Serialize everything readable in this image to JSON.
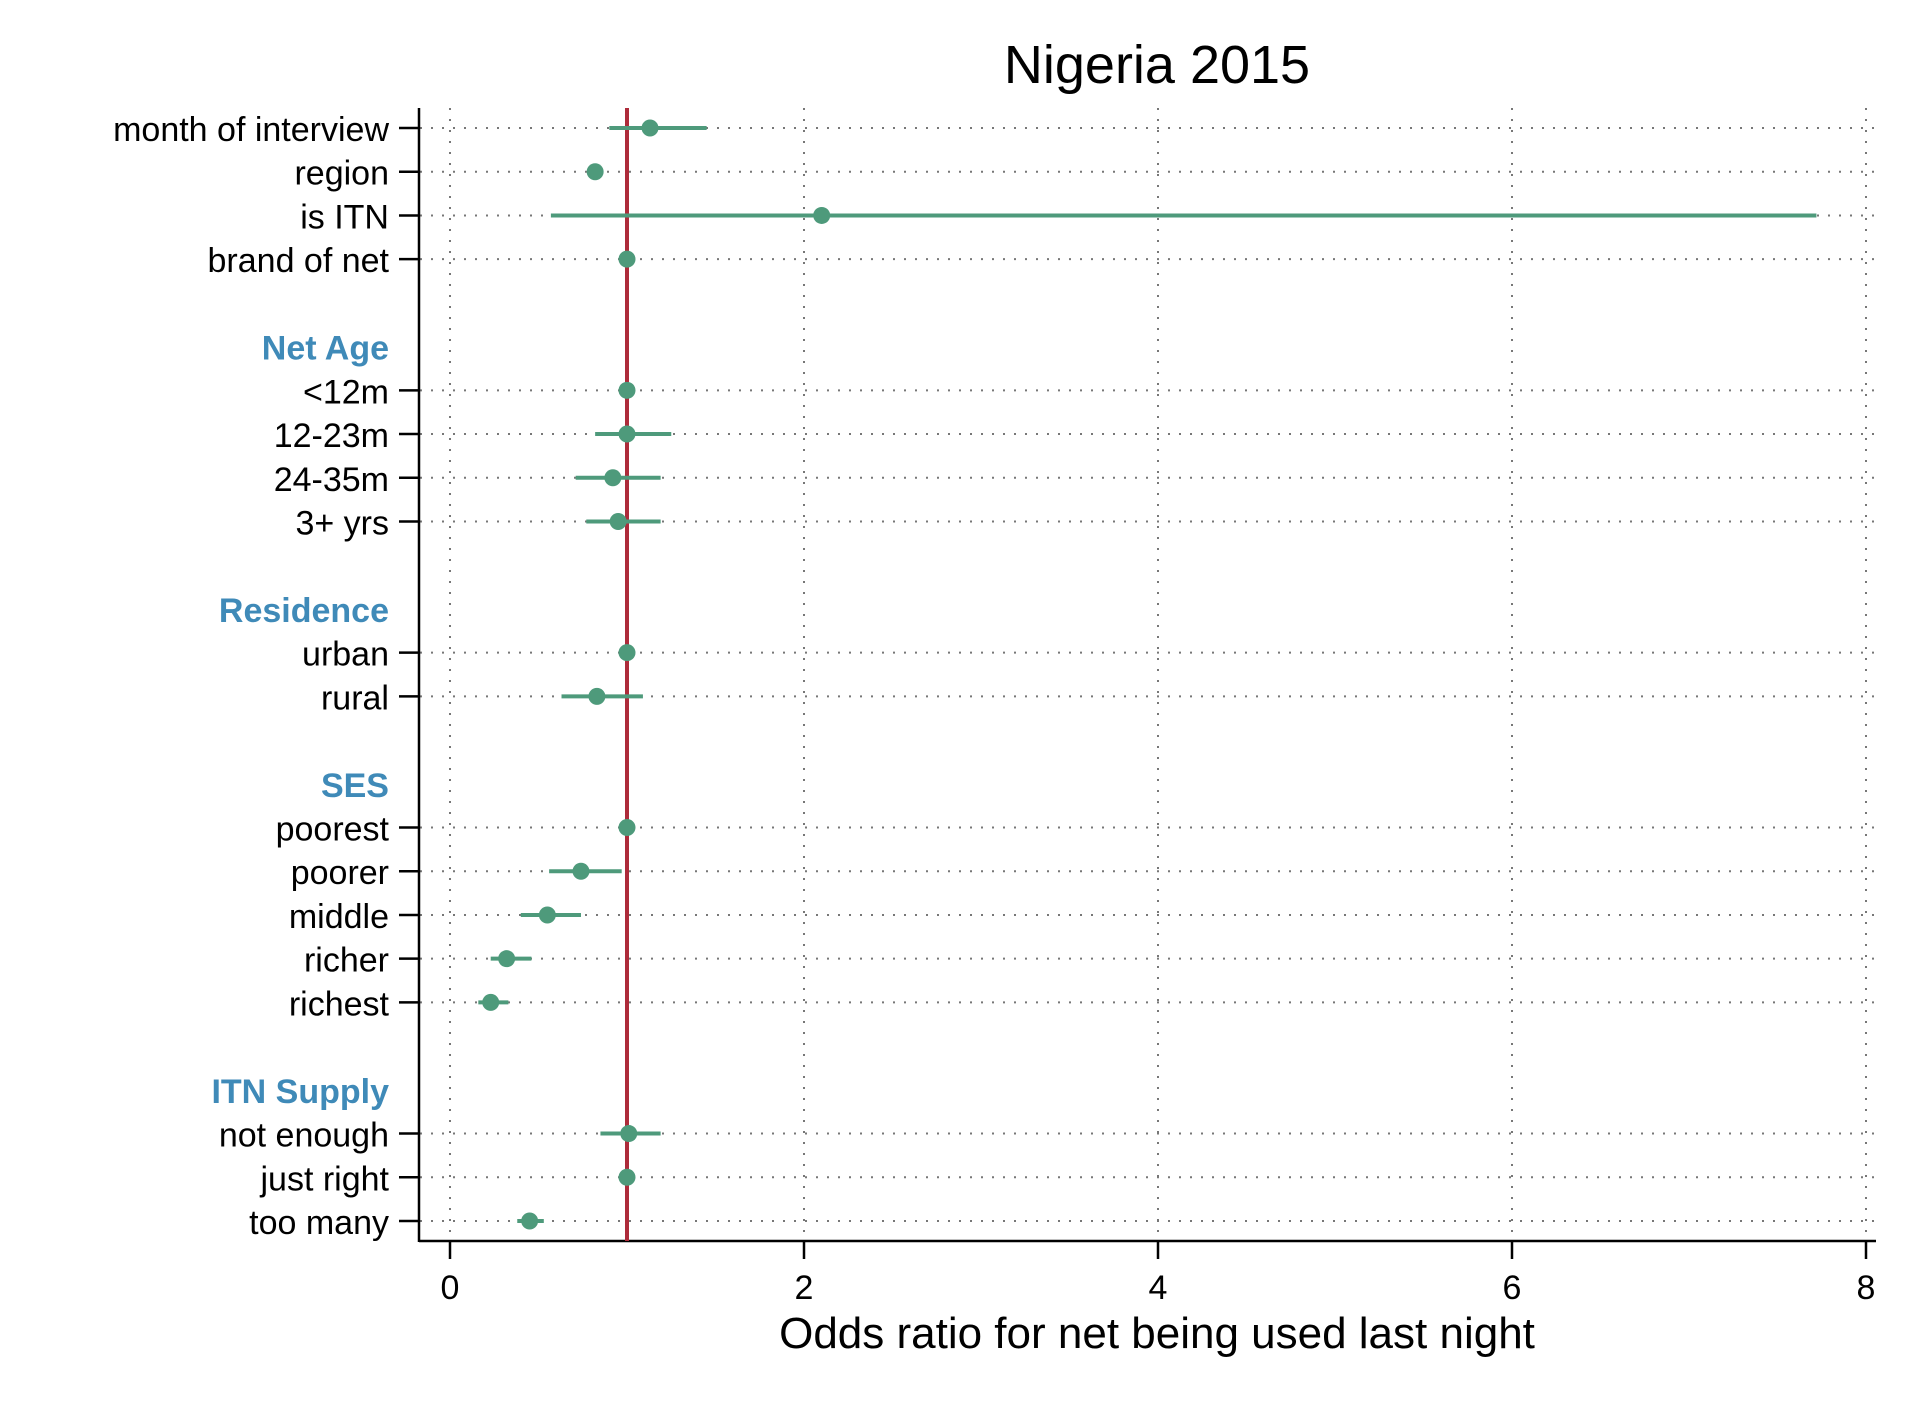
{
  "chart_data": {
    "type": "scatter",
    "title": "Nigeria 2015",
    "xlabel": "Odds ratio for net being used last night",
    "ylabel": "",
    "xlim": [
      -0.1,
      8.1
    ],
    "xticks": [
      0,
      2,
      4,
      6,
      8
    ],
    "xtick_labels": [
      "0",
      "2",
      "4",
      "6",
      "8"
    ],
    "reference_line": 1,
    "grid": true,
    "rows": [
      {
        "label": "month of interview",
        "kind": "item",
        "or": 1.13,
        "lo": 0.9,
        "hi": 1.45
      },
      {
        "label": "region",
        "kind": "item",
        "or": 0.82,
        "lo": null,
        "hi": null
      },
      {
        "label": "is ITN",
        "kind": "item",
        "or": 2.1,
        "lo": 0.57,
        "hi": 7.72
      },
      {
        "label": "brand of net",
        "kind": "item",
        "or": 1.0,
        "lo": null,
        "hi": null
      },
      {
        "label": "",
        "kind": "blank"
      },
      {
        "label": "Net Age",
        "kind": "header"
      },
      {
        "label": "<12m",
        "kind": "item",
        "or": 1.0,
        "lo": null,
        "hi": null
      },
      {
        "label": "12-23m",
        "kind": "item",
        "or": 1.0,
        "lo": 0.82,
        "hi": 1.25
      },
      {
        "label": "24-35m",
        "kind": "item",
        "or": 0.92,
        "lo": 0.71,
        "hi": 1.19
      },
      {
        "label": "3+ yrs",
        "kind": "item",
        "or": 0.95,
        "lo": 0.77,
        "hi": 1.19
      },
      {
        "label": "",
        "kind": "blank"
      },
      {
        "label": "Residence",
        "kind": "header"
      },
      {
        "label": "urban",
        "kind": "item",
        "or": 1.0,
        "lo": null,
        "hi": null
      },
      {
        "label": "rural",
        "kind": "item",
        "or": 0.83,
        "lo": 0.63,
        "hi": 1.09
      },
      {
        "label": "",
        "kind": "blank"
      },
      {
        "label": "SES",
        "kind": "header"
      },
      {
        "label": "poorest",
        "kind": "item",
        "or": 1.0,
        "lo": null,
        "hi": null
      },
      {
        "label": "poorer",
        "kind": "item",
        "or": 0.74,
        "lo": 0.56,
        "hi": 0.97
      },
      {
        "label": "middle",
        "kind": "item",
        "or": 0.55,
        "lo": 0.4,
        "hi": 0.74
      },
      {
        "label": "richer",
        "kind": "item",
        "or": 0.32,
        "lo": 0.23,
        "hi": 0.46
      },
      {
        "label": "richest",
        "kind": "item",
        "or": 0.23,
        "lo": 0.16,
        "hi": 0.33
      },
      {
        "label": "",
        "kind": "blank"
      },
      {
        "label": "ITN Supply",
        "kind": "header"
      },
      {
        "label": "not enough",
        "kind": "item",
        "or": 1.01,
        "lo": 0.85,
        "hi": 1.19
      },
      {
        "label": "just right",
        "kind": "item",
        "or": 1.0,
        "lo": null,
        "hi": null
      },
      {
        "label": "too many",
        "kind": "item",
        "or": 0.45,
        "lo": 0.38,
        "hi": 0.53
      }
    ],
    "colors": {
      "point": "#4e9a7b",
      "reference_line": "#ad2b3a",
      "header_text": "#3f8ab8",
      "label_text": "#000000",
      "grid": "#777777",
      "axis": "#000000"
    }
  }
}
